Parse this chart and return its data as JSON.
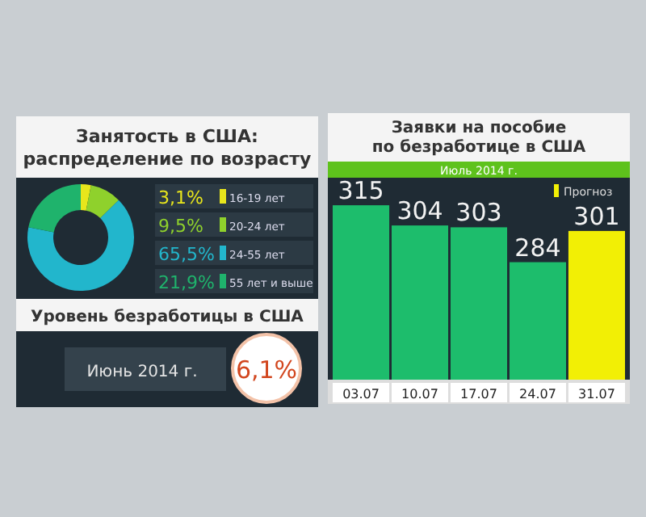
{
  "chart_data": [
    {
      "type": "donut",
      "title": "Занятость в США: распределение по возрасту",
      "categories": [
        "16-19 лет",
        "20-24 лет",
        "24-55 лет",
        "55 лет и выше"
      ],
      "values": [
        3.1,
        9.5,
        65.5,
        21.9
      ],
      "colors": [
        "#e8e61c",
        "#8fd12c",
        "#22b6cc",
        "#1fb36c"
      ],
      "value_labels": [
        "3,1%",
        "9,5%",
        "65,5%",
        "21,9%"
      ],
      "legend": "right"
    },
    {
      "type": "other",
      "title": "Уровень безработицы в США",
      "annotations": [
        "Июнь 2014 г.",
        "6,1%"
      ]
    },
    {
      "type": "bar",
      "title": "Заявки на пособие по безработице в США",
      "subtitle": "Июль 2014 г.",
      "categories": [
        "03.07",
        "10.07",
        "17.07",
        "24.07",
        "31.07"
      ],
      "ylim": [
        220,
        330
      ],
      "tick_labels": "x",
      "data_labels": true,
      "legend": "top right",
      "series": [
        {
          "color": "#1dbd6c",
          "values": [
            315,
            304,
            303,
            284,
            null
          ]
        },
        {
          "name": "Прогноз",
          "color": "#f2ef05",
          "values": [
            null,
            null,
            null,
            null,
            301
          ]
        }
      ]
    }
  ]
}
